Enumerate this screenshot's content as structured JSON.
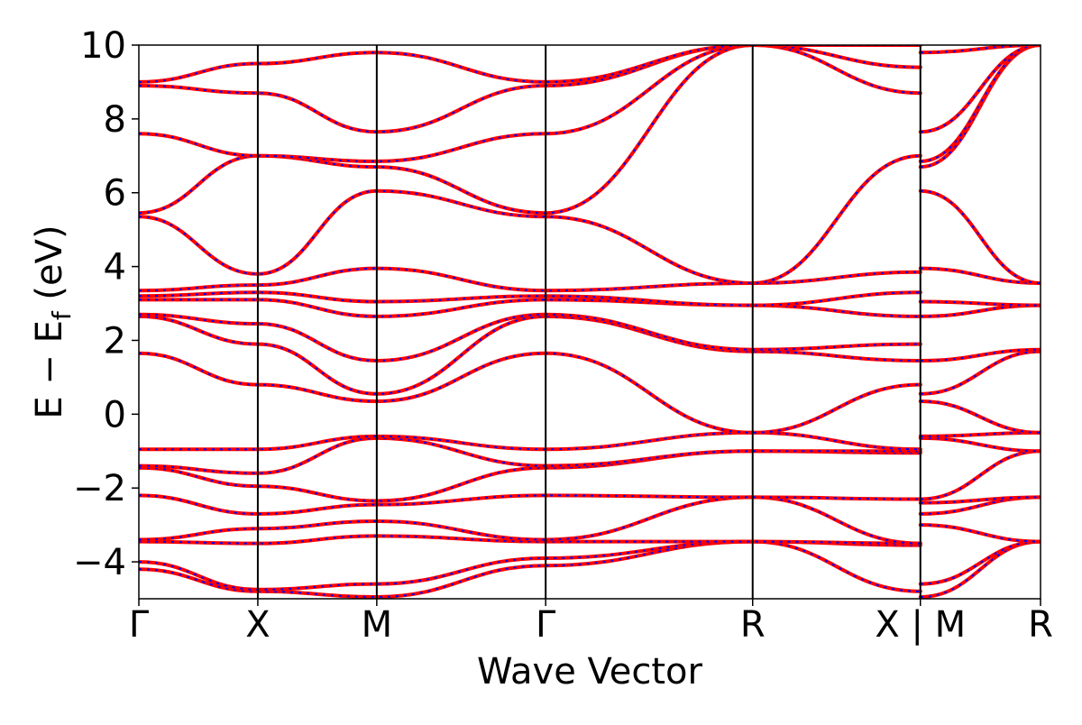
{
  "chart_data": {
    "type": "line",
    "xlabel": "Wave Vector",
    "ylabel_main": "E − E",
    "ylabel_sub": "f",
    "ylabel_unit": " (eV)",
    "ylim": [
      -5,
      10
    ],
    "yticks": [
      -4,
      -2,
      0,
      2,
      4,
      6,
      8,
      10
    ],
    "ytick_labels": [
      "−4",
      "−2",
      "0",
      "2",
      "4",
      "6",
      "8",
      "10"
    ],
    "kpath_labels": [
      "Γ",
      "X",
      "M",
      "Γ",
      "R",
      "X | M",
      "R"
    ],
    "kpath_positions": [
      0,
      1,
      2,
      3.42,
      5.16,
      6.57,
      7.58
    ],
    "colors": {
      "dft": "#ff0000",
      "fit": "#0000ff",
      "axes": "#000000"
    },
    "series_styles": [
      {
        "color": "#ff0000",
        "style": "solid"
      },
      {
        "color": "#0000ff",
        "style": "dashed"
      }
    ],
    "bands_sampled_at_kpoints": [
      [
        -4.2,
        -4.8,
        -4.95,
        -4.1,
        -3.45,
        -4.8,
        -4.95,
        -3.45
      ],
      [
        -4.0,
        -4.75,
        -4.6,
        -3.9,
        -3.45,
        -3.55,
        -4.6,
        -3.45
      ],
      [
        -3.45,
        -3.5,
        -3.3,
        -3.45,
        -3.45,
        -3.5,
        -3.0,
        -3.45
      ],
      [
        -3.4,
        -3.1,
        -2.9,
        -3.4,
        -2.25,
        -3.5,
        -2.7,
        -2.25
      ],
      [
        -2.2,
        -2.7,
        -2.45,
        -2.2,
        -2.25,
        -2.3,
        -2.4,
        -2.25
      ],
      [
        -1.45,
        -1.95,
        -2.35,
        -1.45,
        -1.0,
        -1.05,
        -2.3,
        -1.0
      ],
      [
        -1.4,
        -1.6,
        -0.65,
        -1.4,
        -1.0,
        -1.0,
        -0.65,
        -1.0
      ],
      [
        -0.95,
        -0.95,
        -0.6,
        -0.95,
        -0.5,
        -0.95,
        -0.6,
        -0.5
      ],
      [
        1.65,
        0.8,
        0.35,
        1.65,
        -0.5,
        0.8,
        0.35,
        -0.5
      ],
      [
        2.65,
        1.9,
        0.55,
        2.65,
        1.7,
        1.45,
        0.55,
        1.7
      ],
      [
        2.7,
        2.45,
        1.45,
        2.7,
        1.75,
        1.9,
        1.45,
        1.75
      ],
      [
        3.1,
        3.1,
        2.65,
        3.1,
        2.95,
        2.65,
        2.65,
        2.95
      ],
      [
        3.2,
        3.3,
        3.05,
        3.2,
        2.95,
        3.3,
        3.05,
        2.95
      ],
      [
        3.35,
        3.5,
        3.95,
        3.35,
        3.55,
        3.85,
        3.95,
        3.55
      ],
      [
        5.35,
        3.8,
        6.05,
        5.35,
        3.55,
        7.0,
        6.05,
        3.55
      ],
      [
        5.45,
        7.0,
        6.7,
        5.45,
        10.0,
        8.7,
        6.7,
        10.0
      ],
      [
        7.6,
        7.0,
        6.85,
        7.6,
        10.0,
        9.4,
        6.85,
        10.0
      ],
      [
        8.9,
        8.7,
        7.65,
        8.9,
        10.0,
        10.0,
        7.65,
        10.0
      ],
      [
        9.0,
        9.5,
        9.8,
        9.0,
        10.0,
        10.0,
        9.8,
        10.0
      ]
    ]
  }
}
